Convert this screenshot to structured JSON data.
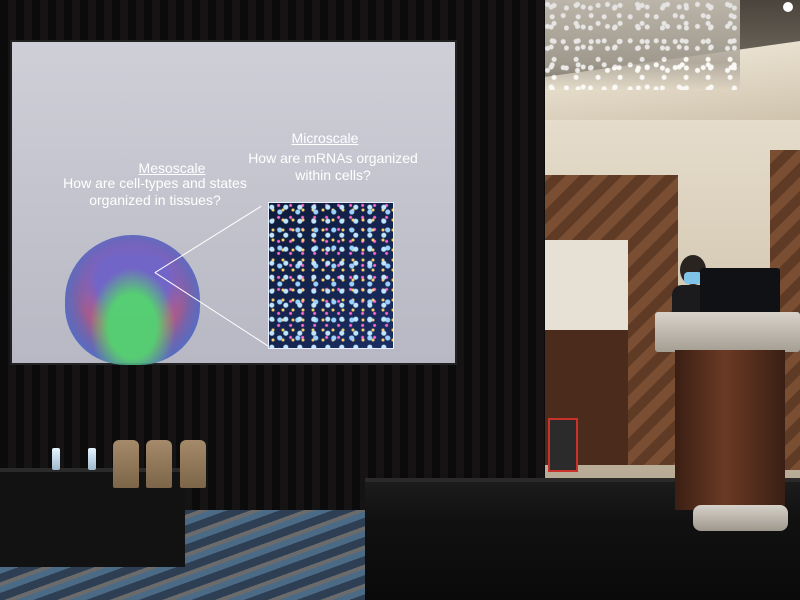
{
  "slide": {
    "mesoscale_title": "Mesoscale",
    "mesoscale_question": "How are cell-types and states organized in tissues?",
    "microscale_title": "Microscale",
    "microscale_question": "How are mRNAs organized within cells?"
  },
  "colors": {
    "slide_background": "#c6c6d0",
    "slide_text": "#ffffff",
    "curtain": "#121010",
    "podium_wood": "#5a2f1d"
  },
  "icons": {
    "brain_image": "brain-section-icon",
    "cell_image": "neuron-microscopy-icon"
  }
}
